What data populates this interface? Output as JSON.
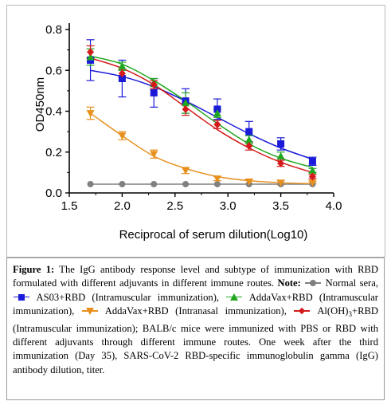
{
  "chart_data": {
    "type": "line",
    "xlabel": "Reciprocal of serum dilution(Log10)",
    "ylabel": "OD450nm",
    "xlim": [
      1.5,
      4.0
    ],
    "ylim": [
      0.0,
      0.8
    ],
    "x_ticks": [
      "1.5",
      "2.0",
      "2.5",
      "3.0",
      "3.5",
      "4.0"
    ],
    "y_ticks": [
      "0.0",
      "0.2",
      "0.4",
      "0.6",
      "0.8"
    ],
    "x": [
      1.7,
      2.0,
      2.3,
      2.6,
      2.9,
      3.2,
      3.5,
      3.8
    ],
    "series": [
      {
        "key": "normal",
        "color": "#808080",
        "marker": "circle",
        "values": [
          0.043,
          0.043,
          0.043,
          0.043,
          0.043,
          0.043,
          0.043,
          0.043
        ],
        "errors": [
          0,
          0,
          0,
          0,
          0,
          0,
          0,
          0
        ],
        "fit": [
          0.043,
          0.043,
          0.043,
          0.043,
          0.043,
          0.043,
          0.043,
          0.043
        ]
      },
      {
        "key": "as03",
        "color": "#1a1ad8",
        "marker": "square",
        "values": [
          0.65,
          0.56,
          0.49,
          0.45,
          0.41,
          0.3,
          0.24,
          0.155
        ],
        "errors": [
          0.1,
          0.09,
          0.07,
          0.06,
          0.05,
          0.05,
          0.03,
          0.02
        ],
        "fit": [
          0.6,
          0.57,
          0.52,
          0.45,
          0.37,
          0.29,
          0.22,
          0.165
        ]
      },
      {
        "key": "addavax_im",
        "color": "#1fa81f",
        "marker": "triangle",
        "values": [
          0.665,
          0.62,
          0.54,
          0.44,
          0.39,
          0.26,
          0.18,
          0.11
        ],
        "errors": [
          0.04,
          0.02,
          0.02,
          0.05,
          0.02,
          0.02,
          0.02,
          0.01
        ],
        "fit": [
          0.67,
          0.63,
          0.55,
          0.45,
          0.34,
          0.24,
          0.17,
          0.125
        ]
      },
      {
        "key": "addavax_in",
        "color": "#e8901e",
        "marker": "triangle-down",
        "values": [
          0.39,
          0.28,
          0.19,
          0.11,
          0.07,
          0.055,
          0.05,
          0.05
        ],
        "errors": [
          0.03,
          0.02,
          0.02,
          0.015,
          0.01,
          0.01,
          0.01,
          0.005
        ],
        "fit": [
          0.39,
          0.28,
          0.18,
          0.12,
          0.08,
          0.06,
          0.05,
          0.045
        ]
      },
      {
        "key": "aloh3",
        "color": "#d41a1a",
        "marker": "diamond",
        "values": [
          0.69,
          0.585,
          0.53,
          0.41,
          0.335,
          0.23,
          0.145,
          0.08
        ],
        "errors": [
          0.03,
          0.02,
          0.02,
          0.03,
          0.02,
          0.02,
          0.015,
          0.01
        ],
        "fit": [
          0.66,
          0.61,
          0.53,
          0.42,
          0.31,
          0.22,
          0.15,
          0.1
        ]
      }
    ]
  },
  "caption": {
    "figure_label": "Figure 1:",
    "t1": " The IgG antibody response level and subtype of immunization with RBD formulated with different adjuvants in different immune routes. ",
    "note_label": "Note:",
    "t2": " Normal sera, ",
    "t3": " AS03+RBD (Intramuscular immunization), ",
    "t4": " AddaVax+RBD (Intramuscular immunization), ",
    "t5": " AddaVax+RBD (Intranasal immunization), ",
    "t6": " Al(OH)",
    "t6_sub": "3",
    "t7": "+RBD (Intramuscular immunization); BALB/c mice were immunized with PBS or RBD with different adjuvants through different immune routes. One week after the third immunization (Day 35), SARS-CoV-2 RBD-specific immunoglobulin gamma (IgG) antibody dilution, titer."
  }
}
